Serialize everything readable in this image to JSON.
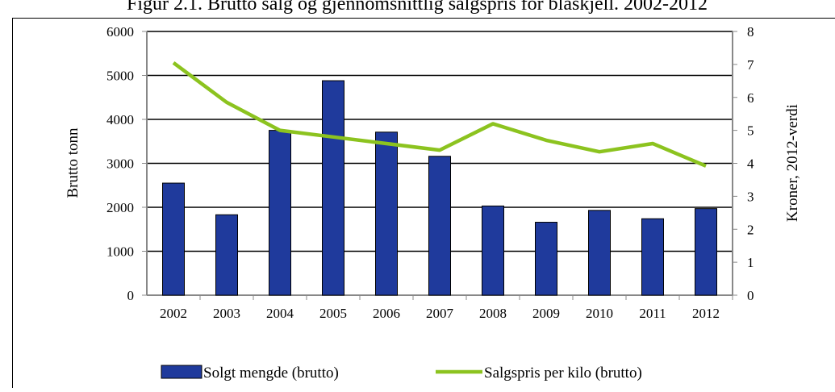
{
  "chart_data": {
    "type": "bar-line",
    "title": "Figur 2.1. Brutto salg og gjennomsnittlig salgspris for blåskjell. 2002-2012",
    "categories": [
      "2002",
      "2003",
      "2004",
      "2005",
      "2006",
      "2007",
      "2008",
      "2009",
      "2010",
      "2011",
      "2012"
    ],
    "series": [
      {
        "name": "Solgt mengde (brutto)",
        "type": "bar",
        "color": "#1f3a9c",
        "values": [
          2550,
          1830,
          3750,
          4880,
          3710,
          3160,
          2030,
          1660,
          1930,
          1740,
          1970
        ]
      },
      {
        "name": "Salgspris per kilo (brutto)",
        "type": "line",
        "axis": "y2",
        "color": "#8cc31f",
        "values": [
          7.05,
          5.85,
          5.0,
          4.8,
          4.6,
          4.4,
          5.2,
          4.7,
          4.35,
          4.6,
          3.92
        ]
      }
    ],
    "ylabel": "Brutto tonn",
    "y2label": "Kroner, 2012-verdi",
    "ylim": [
      0,
      6000
    ],
    "yticks": [
      0,
      1000,
      2000,
      3000,
      4000,
      5000,
      6000
    ],
    "y2lim": [
      0,
      8
    ],
    "y2ticks": [
      0,
      1,
      2,
      3,
      4,
      5,
      6,
      7,
      8
    ],
    "grid": true,
    "legend": "bottom"
  }
}
